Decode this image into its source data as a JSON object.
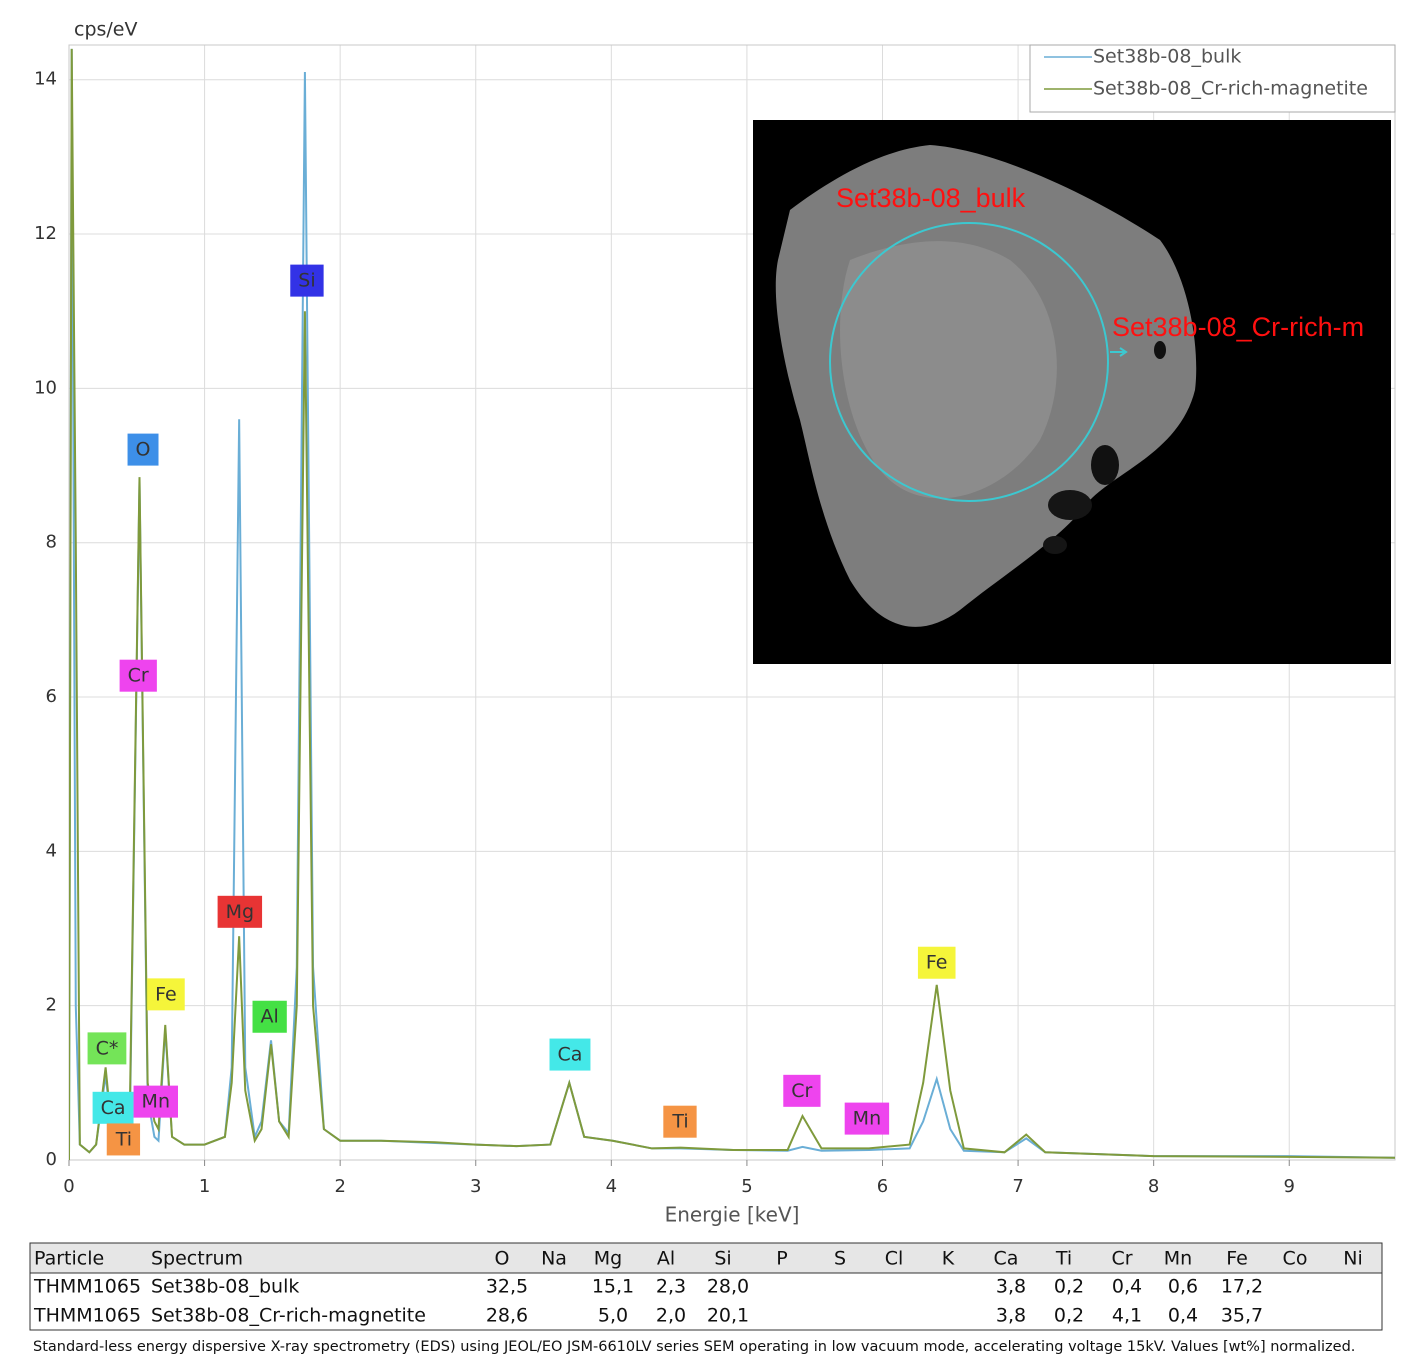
{
  "chart_data": {
    "type": "line",
    "ylabel": "cps/eV",
    "xlabel": "Energie [keV]",
    "xlim": [
      0,
      9.78
    ],
    "ylim": [
      0,
      14.45
    ],
    "xticks": [
      0,
      1,
      2,
      3,
      4,
      5,
      6,
      7,
      8,
      9
    ],
    "yticks": [
      0,
      2,
      4,
      6,
      8,
      10,
      12,
      14
    ],
    "grid": true,
    "legend": "upper right",
    "x": [
      0,
      0.02,
      0.05,
      0.08,
      0.15,
      0.2,
      0.27,
      0.32,
      0.4,
      0.45,
      0.52,
      0.58,
      0.63,
      0.66,
      0.71,
      0.76,
      0.85,
      1.0,
      1.15,
      1.2,
      1.255,
      1.3,
      1.37,
      1.42,
      1.49,
      1.55,
      1.62,
      1.68,
      1.74,
      1.8,
      1.88,
      2.0,
      2.3,
      2.7,
      3.0,
      3.3,
      3.55,
      3.69,
      3.8,
      4.01,
      4.3,
      4.51,
      4.9,
      5.3,
      5.41,
      5.55,
      5.9,
      6.2,
      6.3,
      6.4,
      6.5,
      6.6,
      6.9,
      7.06,
      7.2,
      8.0,
      9.0,
      9.78
    ],
    "series": [
      {
        "name": "Set38b-08_bulk",
        "color": "#6aaed6",
        "values": [
          0,
          14.4,
          2,
          0.2,
          0.1,
          0.2,
          1.1,
          0.3,
          0.2,
          0.6,
          8.8,
          0.8,
          0.3,
          0.25,
          1.7,
          0.3,
          0.2,
          0.2,
          0.3,
          1.2,
          9.6,
          1.2,
          0.3,
          0.5,
          1.55,
          0.5,
          0.35,
          2.5,
          14.1,
          2.5,
          0.4,
          0.25,
          0.25,
          0.22,
          0.2,
          0.18,
          0.2,
          1.0,
          0.3,
          0.25,
          0.15,
          0.15,
          0.13,
          0.12,
          0.17,
          0.12,
          0.13,
          0.15,
          0.5,
          1.05,
          0.4,
          0.12,
          0.1,
          0.28,
          0.1,
          0.05,
          0.05,
          0.03
        ]
      },
      {
        "name": "Set38b-08_Cr-rich-magnetite",
        "color": "#7f9a3c",
        "values": [
          0,
          14.4,
          8,
          0.2,
          0.1,
          0.2,
          1.2,
          0.3,
          0.25,
          0.8,
          8.85,
          1.0,
          0.5,
          0.4,
          1.75,
          0.3,
          0.2,
          0.2,
          0.3,
          1.0,
          2.9,
          0.9,
          0.25,
          0.4,
          1.5,
          0.5,
          0.3,
          2.0,
          11.0,
          2.0,
          0.4,
          0.25,
          0.25,
          0.23,
          0.2,
          0.18,
          0.2,
          1.0,
          0.3,
          0.25,
          0.15,
          0.16,
          0.13,
          0.13,
          0.57,
          0.15,
          0.15,
          0.2,
          1.0,
          2.27,
          0.9,
          0.15,
          0.1,
          0.33,
          0.1,
          0.05,
          0.04,
          0.03
        ]
      }
    ],
    "annotations": [
      {
        "text": "O",
        "x": 0.546,
        "y": 9.2,
        "color": "#3d8fe8"
      },
      {
        "text": "Cr",
        "x": 0.51,
        "y": 6.27,
        "color": "#ee44ee"
      },
      {
        "text": "Si",
        "x": 1.755,
        "y": 11.39,
        "color": "#3232e6"
      },
      {
        "text": "Mg",
        "x": 1.26,
        "y": 3.21,
        "color": "#e83434"
      },
      {
        "text": "Fe",
        "x": 0.715,
        "y": 2.14,
        "color": "#f5f53a"
      },
      {
        "text": "Al",
        "x": 1.48,
        "y": 1.85,
        "color": "#44e044"
      },
      {
        "text": "C*",
        "x": 0.28,
        "y": 1.44,
        "color": "#74e458"
      },
      {
        "text": "Ca",
        "x": 0.325,
        "y": 0.67,
        "color": "#44e8e8"
      },
      {
        "text": "Mn",
        "x": 0.64,
        "y": 0.75,
        "color": "#ee44ee"
      },
      {
        "text": "Ti",
        "x": 0.405,
        "y": 0.26,
        "color": "#f59444"
      },
      {
        "text": "Ca",
        "x": 3.695,
        "y": 1.36,
        "color": "#44e8e8"
      },
      {
        "text": "Ti",
        "x": 4.51,
        "y": 0.49,
        "color": "#f59444"
      },
      {
        "text": "Cr",
        "x": 5.405,
        "y": 0.89,
        "color": "#ee44ee"
      },
      {
        "text": "Mn",
        "x": 5.885,
        "y": 0.53,
        "color": "#ee44ee"
      },
      {
        "text": "Fe",
        "x": 6.4,
        "y": 2.55,
        "color": "#f5f53a"
      }
    ]
  },
  "inset": {
    "labels": [
      "Set38b-08_bulk",
      "Set38b-08_Cr-rich-m"
    ]
  },
  "table": {
    "columns": [
      "Particle",
      "Spectrum",
      "O",
      "Na",
      "Mg",
      "Al",
      "Si",
      "P",
      "S",
      "Cl",
      "K",
      "Ca",
      "Ti",
      "Cr",
      "Mn",
      "Fe",
      "Co",
      "Ni"
    ],
    "rows": [
      [
        "THMM1065",
        "Set38b-08_bulk",
        "32,5",
        null,
        "15,1",
        "2,3",
        "28,0",
        null,
        null,
        null,
        null,
        "3,8",
        "0,2",
        "0,4",
        "0,6",
        "17,2",
        null,
        null
      ],
      [
        "THMM1065",
        "Set38b-08_Cr-rich-magnetite",
        "28,6",
        null,
        "5,0",
        "2,0",
        "20,1",
        null,
        null,
        null,
        null,
        "3,8",
        "0,2",
        "4,1",
        "0,4",
        "35,7",
        null,
        null
      ]
    ]
  },
  "footnote": "Standard-less energy dispersive X-ray spectrometry (EDS) using JEOL/EO JSM-6610LV series SEM operating in low vacuum mode, accelerating voltage 15kV. Values [wt%] normalized."
}
